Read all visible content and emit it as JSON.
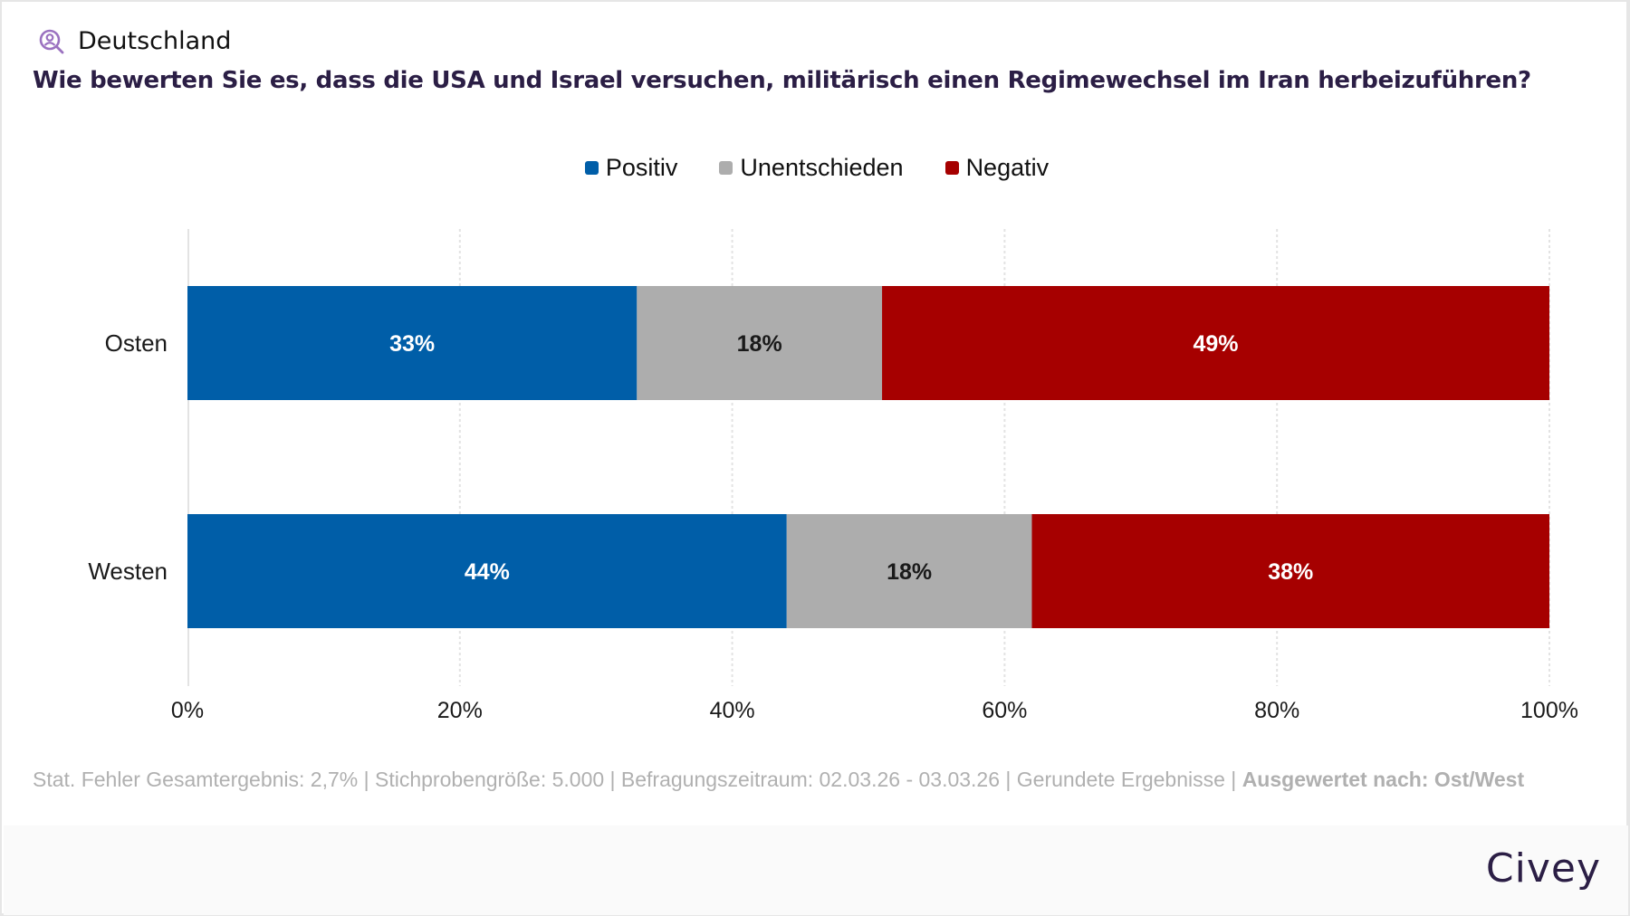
{
  "header": {
    "region": "Deutschland",
    "icon": "user-search-icon",
    "question": "Wie bewerten Sie es, dass die USA und Israel versuchen, militärisch einen Regimewechsel im Iran herbeizuführen?"
  },
  "colors": {
    "positive": "#005ea8",
    "undecided": "#adadad",
    "negative": "#a60000",
    "accent": "#9b72c0",
    "title": "#2b1e45"
  },
  "chart_data": {
    "type": "bar",
    "orientation": "horizontal",
    "stacked": true,
    "title": "Wie bewerten Sie es, dass die USA und Israel versuchen, militärisch einen Regimewechsel im Iran herbeizuführen?",
    "categories": [
      "Osten",
      "Westen"
    ],
    "series": [
      {
        "name": "Positiv",
        "color": "#005ea8",
        "label_color": "#ffffff",
        "values": [
          33,
          44
        ]
      },
      {
        "name": "Unentschieden",
        "color": "#adadad",
        "label_color": "#1a1a1a",
        "values": [
          18,
          18
        ]
      },
      {
        "name": "Negativ",
        "color": "#a60000",
        "label_color": "#ffffff",
        "values": [
          49,
          38
        ]
      }
    ],
    "xlim": [
      0,
      100
    ],
    "xticks": [
      0,
      20,
      40,
      60,
      80,
      100
    ],
    "xtick_labels": [
      "0%",
      "20%",
      "40%",
      "60%",
      "80%",
      "100%"
    ],
    "xlabel": "",
    "ylabel": "",
    "grid": true,
    "legend": "top-center",
    "value_suffix": "%"
  },
  "footnote": {
    "text": "Stat. Fehler Gesamtergebnis: 2,7% | Stichprobengröße: 5.000 | Befragungszeitraum: 02.03.26 - 03.03.26 | Gerundete Ergebnisse | ",
    "bold": "Ausgewertet nach: Ost/West"
  },
  "brand": {
    "logo": "Civey"
  }
}
